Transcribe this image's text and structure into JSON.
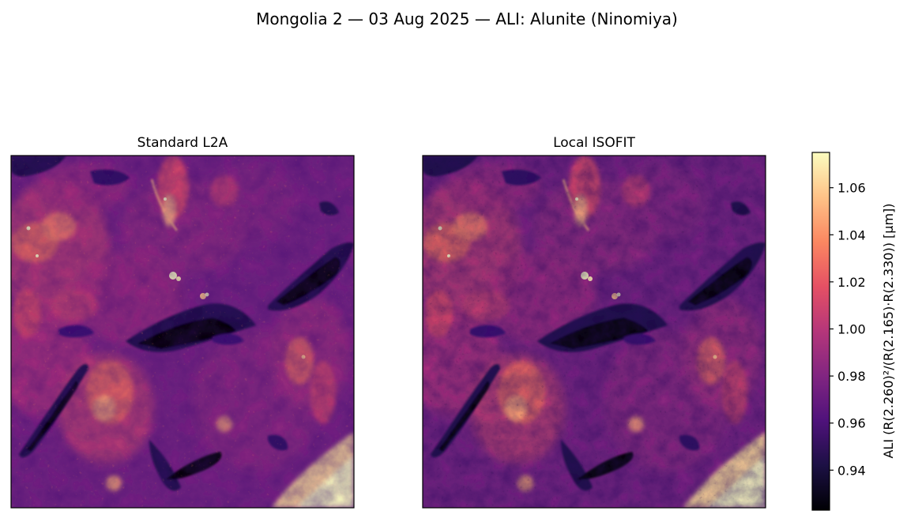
{
  "figure": {
    "suptitle": "Mongolia 2 — 03 Aug 2025 — ALI: Alunite (Ninomiya)"
  },
  "panels": [
    {
      "title": "Standard L2A",
      "variant": "standard"
    },
    {
      "title": "Local ISOFIT",
      "variant": "isofit"
    }
  ],
  "colorbar": {
    "colormap": "magma",
    "label": "ALI  (R(2.260)²/(R(2.165)·R(2.330))  [µm])",
    "vmin": 0.923,
    "vmax": 1.075,
    "ticks": [
      "0.94",
      "0.96",
      "0.98",
      "1.00",
      "1.02",
      "1.04",
      "1.06"
    ],
    "colors": [
      "#000004",
      "#1c1044",
      "#4f127b",
      "#812581",
      "#b5367a",
      "#e55064",
      "#fb8761",
      "#fec287",
      "#fcfdbf"
    ]
  }
}
